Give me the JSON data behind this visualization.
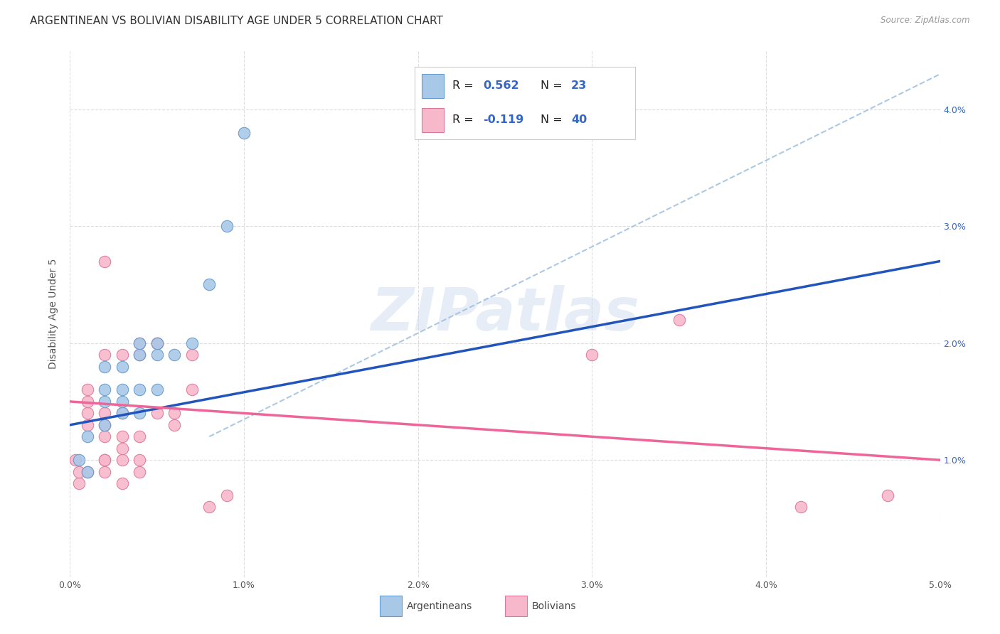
{
  "title": "ARGENTINEAN VS BOLIVIAN DISABILITY AGE UNDER 5 CORRELATION CHART",
  "source": "Source: ZipAtlas.com",
  "ylabel": "Disability Age Under 5",
  "xlim": [
    0.0,
    0.05
  ],
  "ylim": [
    0.0,
    0.045
  ],
  "xtick_labels": [
    "0.0%",
    "1.0%",
    "2.0%",
    "3.0%",
    "4.0%",
    "5.0%"
  ],
  "xtick_vals": [
    0.0,
    0.01,
    0.02,
    0.03,
    0.04,
    0.05
  ],
  "ytick_labels": [
    "1.0%",
    "2.0%",
    "3.0%",
    "4.0%"
  ],
  "ytick_vals": [
    0.01,
    0.02,
    0.03,
    0.04
  ],
  "argentinean_points": [
    [
      0.0005,
      0.01
    ],
    [
      0.001,
      0.009
    ],
    [
      0.001,
      0.012
    ],
    [
      0.002,
      0.013
    ],
    [
      0.002,
      0.015
    ],
    [
      0.002,
      0.016
    ],
    [
      0.002,
      0.018
    ],
    [
      0.003,
      0.014
    ],
    [
      0.003,
      0.015
    ],
    [
      0.003,
      0.016
    ],
    [
      0.003,
      0.018
    ],
    [
      0.004,
      0.014
    ],
    [
      0.004,
      0.016
    ],
    [
      0.004,
      0.019
    ],
    [
      0.004,
      0.02
    ],
    [
      0.005,
      0.016
    ],
    [
      0.005,
      0.019
    ],
    [
      0.005,
      0.02
    ],
    [
      0.006,
      0.019
    ],
    [
      0.007,
      0.02
    ],
    [
      0.008,
      0.025
    ],
    [
      0.009,
      0.03
    ],
    [
      0.01,
      0.038
    ]
  ],
  "bolivian_points": [
    [
      0.0003,
      0.01
    ],
    [
      0.0005,
      0.008
    ],
    [
      0.0005,
      0.009
    ],
    [
      0.001,
      0.009
    ],
    [
      0.001,
      0.013
    ],
    [
      0.001,
      0.014
    ],
    [
      0.001,
      0.015
    ],
    [
      0.001,
      0.016
    ],
    [
      0.002,
      0.009
    ],
    [
      0.002,
      0.01
    ],
    [
      0.002,
      0.01
    ],
    [
      0.002,
      0.012
    ],
    [
      0.002,
      0.013
    ],
    [
      0.002,
      0.014
    ],
    [
      0.002,
      0.019
    ],
    [
      0.002,
      0.027
    ],
    [
      0.003,
      0.008
    ],
    [
      0.003,
      0.01
    ],
    [
      0.003,
      0.011
    ],
    [
      0.003,
      0.012
    ],
    [
      0.003,
      0.014
    ],
    [
      0.003,
      0.019
    ],
    [
      0.004,
      0.009
    ],
    [
      0.004,
      0.01
    ],
    [
      0.004,
      0.012
    ],
    [
      0.004,
      0.019
    ],
    [
      0.004,
      0.02
    ],
    [
      0.005,
      0.014
    ],
    [
      0.005,
      0.02
    ],
    [
      0.005,
      0.02
    ],
    [
      0.006,
      0.013
    ],
    [
      0.006,
      0.014
    ],
    [
      0.007,
      0.016
    ],
    [
      0.007,
      0.019
    ],
    [
      0.008,
      0.006
    ],
    [
      0.009,
      0.007
    ],
    [
      0.03,
      0.019
    ],
    [
      0.035,
      0.022
    ],
    [
      0.042,
      0.006
    ],
    [
      0.047,
      0.007
    ]
  ],
  "arg_color": "#a8c8e8",
  "arg_edge_color": "#6699cc",
  "bol_color": "#f8b8cc",
  "bol_edge_color": "#dd7799",
  "arg_line_color": "#2255bb",
  "bol_line_color": "#ee6699",
  "diag_line_color": "#99bbdd",
  "background_color": "#ffffff",
  "grid_color": "#dddddd",
  "watermark_text": "ZIPatlas",
  "title_fontsize": 11,
  "label_fontsize": 10,
  "tick_fontsize": 9,
  "legend_r1": "0.562",
  "legend_n1": "23",
  "legend_r2": "-0.119",
  "legend_n2": "40"
}
